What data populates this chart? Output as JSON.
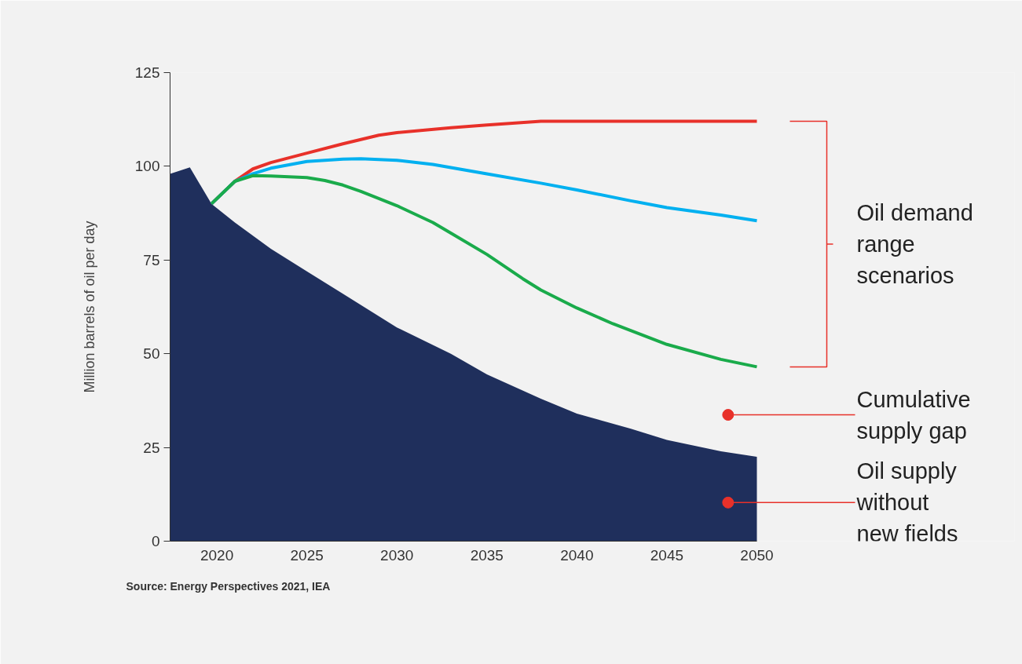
{
  "chart_data": {
    "type": "line",
    "ylabel": "Million barrels of oil per day",
    "xlim": [
      2017.4,
      2050
    ],
    "ylim": [
      0,
      125
    ],
    "xticks": [
      2020,
      2025,
      2030,
      2035,
      2040,
      2045,
      2050
    ],
    "yticks": [
      0,
      25,
      50,
      75,
      100,
      125
    ],
    "grid": false,
    "marker": "none",
    "line_style": "solid",
    "series": [
      {
        "type": "area",
        "color": "#1f2f5c",
        "x": [
          2017.4,
          2018.5,
          2019.7,
          2021,
          2023,
          2025,
          2027,
          2030,
          2033,
          2035,
          2038,
          2040,
          2043,
          2045,
          2048,
          2050
        ],
        "values": [
          98,
          99.7,
          90,
          85,
          78,
          72,
          66,
          57,
          50,
          44.5,
          38,
          34,
          30,
          27,
          24,
          22.5
        ]
      },
      {
        "color": "#e8312a",
        "x": [
          2019.7,
          2021,
          2022,
          2023,
          2025,
          2027,
          2029,
          2030,
          2033,
          2035,
          2038,
          2042,
          2046,
          2050
        ],
        "values": [
          90,
          96,
          99.3,
          101,
          103.5,
          106,
          108.3,
          109,
          110.3,
          111,
          112,
          112,
          112,
          112
        ]
      },
      {
        "color": "#00b0f0",
        "x": [
          2019.7,
          2021,
          2022,
          2023,
          2025,
          2027,
          2028,
          2030,
          2032,
          2035,
          2038,
          2040,
          2043,
          2045,
          2048,
          2050
        ],
        "values": [
          90,
          96,
          98,
          99.5,
          101.3,
          101.9,
          102,
          101.6,
          100.5,
          98,
          95.5,
          93.7,
          90.8,
          89,
          87,
          85.5
        ]
      },
      {
        "color": "#1aab4b",
        "x": [
          2019.7,
          2021,
          2022,
          2023,
          2025,
          2026,
          2027,
          2028,
          2030,
          2032,
          2033,
          2035,
          2037,
          2038,
          2040,
          2042,
          2045,
          2048,
          2050
        ],
        "values": [
          90,
          96,
          97.5,
          97.4,
          97,
          96.2,
          95,
          93.3,
          89.5,
          85,
          82.2,
          76.5,
          70,
          67,
          62.2,
          58,
          52.5,
          48.5,
          46.5
        ]
      }
    ],
    "annotations": [
      "Oil demand range scenarios",
      {
        "text": "Cumulative supply gap",
        "x": 2048.4,
        "y": 33.7
      },
      {
        "text": "Oil supply without new fields",
        "x": 2048.4,
        "y": 10.3
      },
      "Source: Energy Perspectives 2021, IEA"
    ]
  }
}
